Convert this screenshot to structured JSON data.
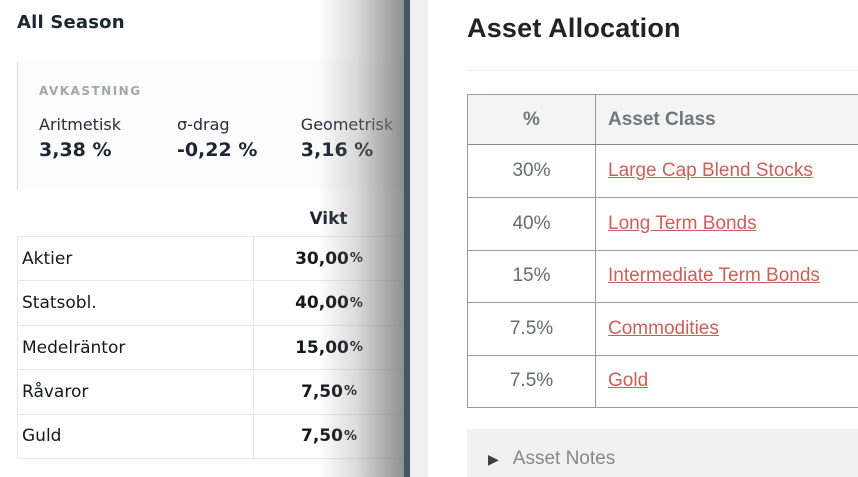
{
  "left_panel": {
    "title": "All Season",
    "returns": {
      "section_label": "AVKASTNING",
      "stats": [
        {
          "label": "Aritmetisk",
          "value": "3,38 %"
        },
        {
          "label": "σ-drag",
          "value": "-0,22 %"
        },
        {
          "label": "Geometrisk",
          "value": "3,16 %"
        }
      ]
    },
    "weights_table": {
      "column_header": "Vikt",
      "rows": [
        {
          "label": "Aktier",
          "value": "30,00",
          "unit": "%"
        },
        {
          "label": "Statsobl.",
          "value": "40,00",
          "unit": "%"
        },
        {
          "label": "Medelräntor",
          "value": "15,00",
          "unit": "%"
        },
        {
          "label": "Råvaror",
          "value": "7,50",
          "unit": "%"
        },
        {
          "label": "Guld",
          "value": "7,50",
          "unit": "%"
        }
      ]
    }
  },
  "right_panel": {
    "title": "Asset Allocation",
    "allocation_table": {
      "headers": {
        "percent": "%",
        "asset_class": "Asset Class"
      },
      "rows": [
        {
          "percent": "30%",
          "asset_class": "Large Cap Blend Stocks"
        },
        {
          "percent": "40%",
          "asset_class": "Long Term Bonds"
        },
        {
          "percent": "15%",
          "asset_class": "Intermediate Term Bonds"
        },
        {
          "percent": "7.5%",
          "asset_class": "Commodities"
        },
        {
          "percent": "7.5%",
          "asset_class": "Gold"
        }
      ]
    },
    "asset_notes": {
      "expander_icon": "▶",
      "label": "Asset Notes"
    }
  },
  "colors": {
    "link": "#cb6058",
    "window_edge": "#475269",
    "table_border": "#979c9e",
    "header_bg": "#f4f4f4",
    "notes_bg": "#f1f1f1",
    "left_text": "#1d2533",
    "muted_label": "#a2a6ad"
  }
}
